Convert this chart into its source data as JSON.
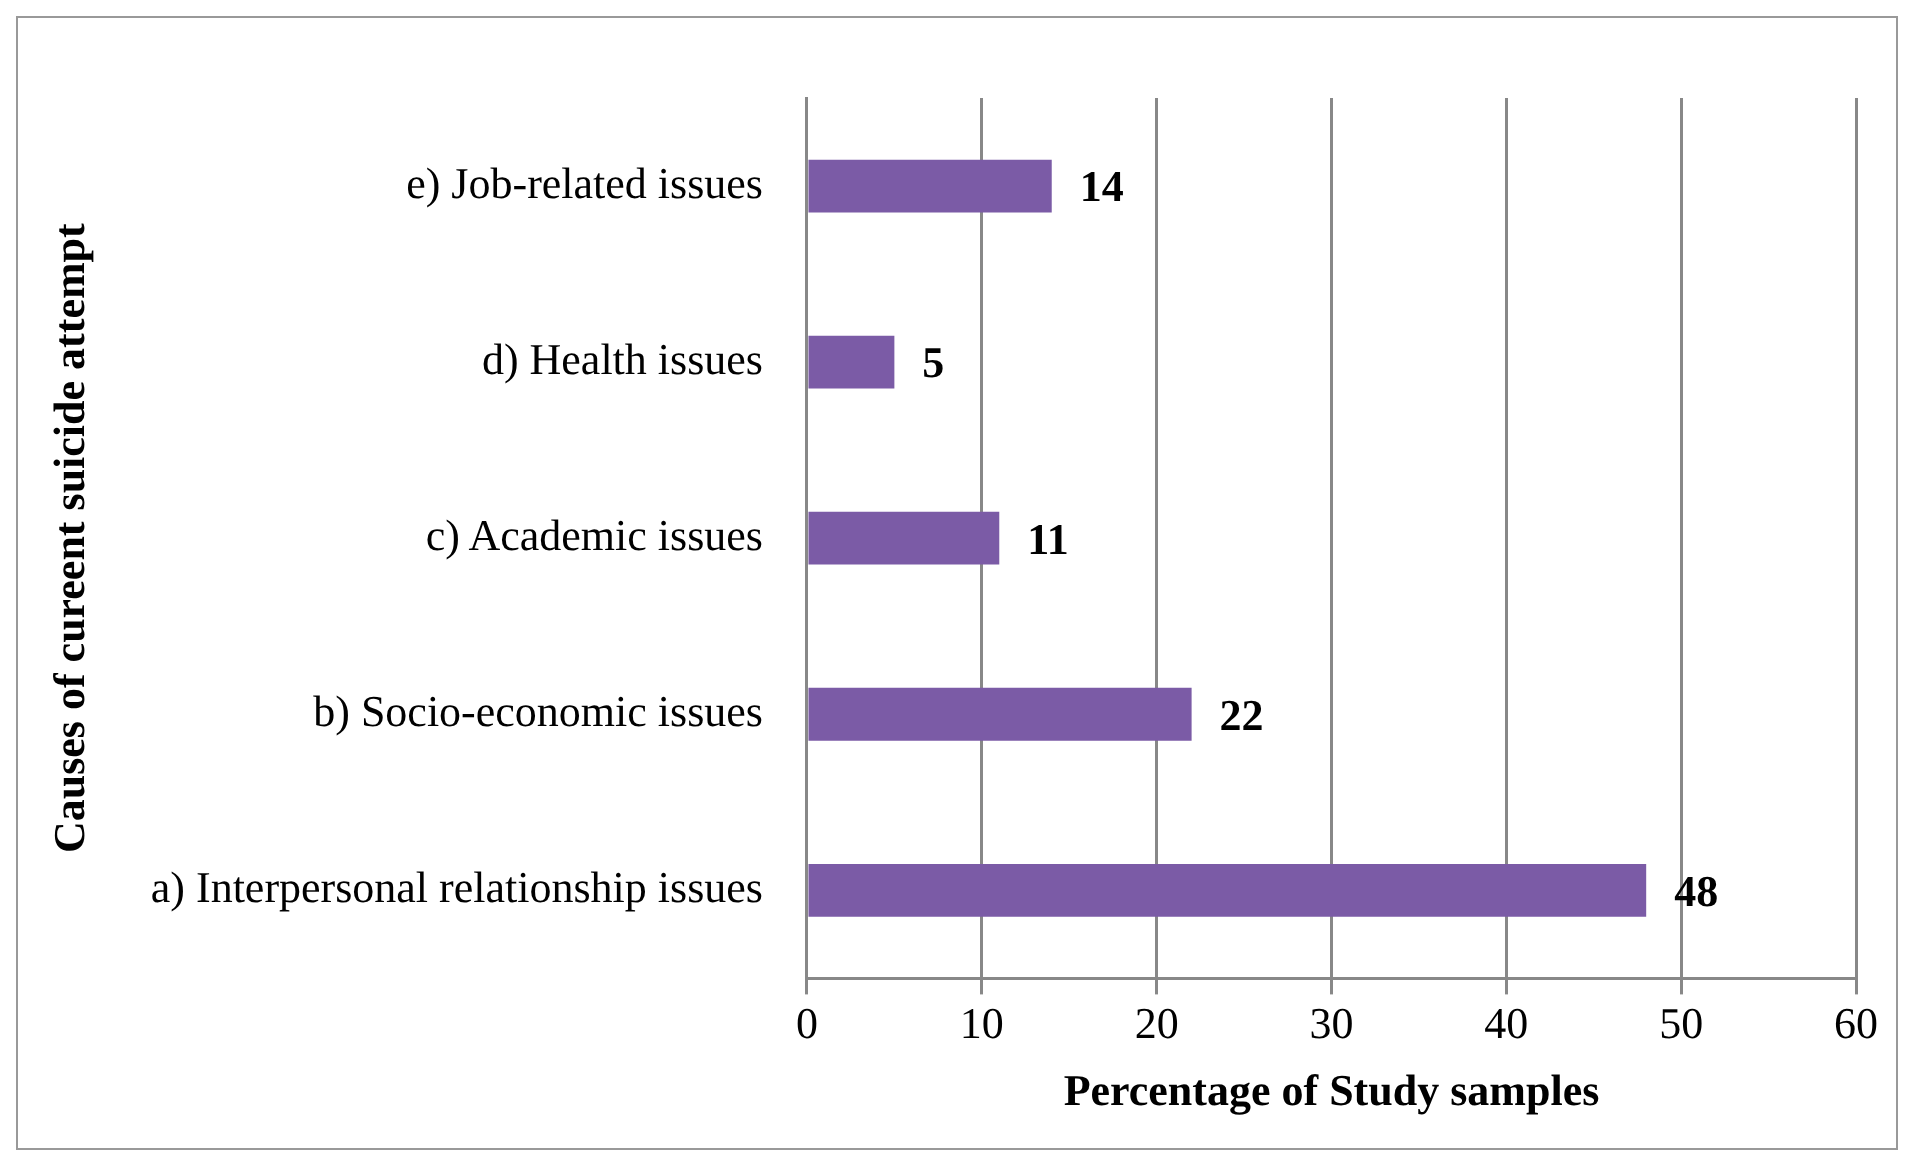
{
  "chart_data": {
    "type": "bar",
    "orientation": "horizontal",
    "categories": [
      "e) Job-related issues",
      "d) Health issues",
      "c) Academic issues",
      "b) Socio-economic issues",
      "a) Interpersonal relationship issues"
    ],
    "values": [
      14,
      5,
      11,
      22,
      48
    ],
    "color": "#7b5ba6",
    "xlim": [
      0,
      60
    ],
    "xticks": [
      0,
      10,
      20,
      30,
      40,
      50,
      60
    ],
    "xlabel": "Percentage of Study samples",
    "ylabel": "Causes of cureent suicide attempt",
    "grid": "x",
    "data_labels": true,
    "legend": false
  }
}
